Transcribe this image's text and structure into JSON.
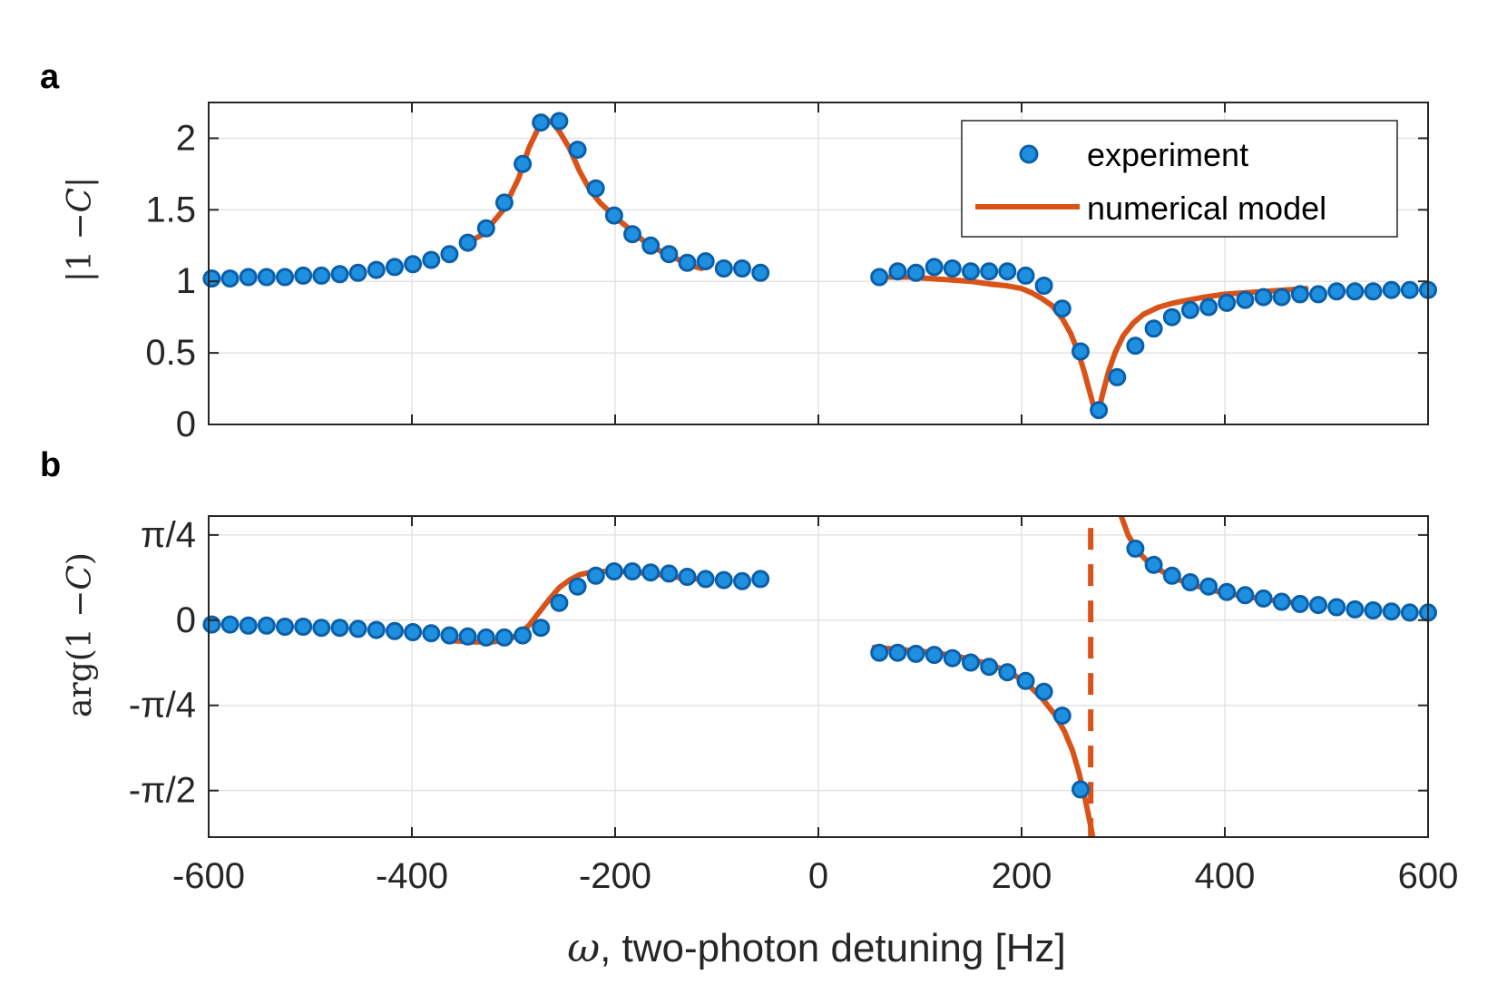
{
  "figure": {
    "xlabel": {
      "symbol": "ω",
      "text": ", two-photon detuning [Hz]"
    }
  },
  "legend": {
    "experiment": "experiment",
    "model": "numerical model"
  },
  "colors": {
    "marker_fill": "#1f8fe0",
    "marker_edge": "#0b5fa8",
    "model": "#d95319",
    "grid": "#e3e3e3",
    "axis": "#262626"
  },
  "chart_data": [
    {
      "panel": "a",
      "type": "scatter",
      "ylabel": "|1 − C|",
      "ylabel_parts": {
        "left": "|1 −",
        "symbol": "C",
        "right": "|"
      },
      "xlim": [
        -600,
        600
      ],
      "ylim": [
        0,
        2.25
      ],
      "xticks": [
        -600,
        -400,
        -200,
        0,
        200,
        400,
        600
      ],
      "yticks": [
        0,
        0.5,
        1,
        1.5,
        2
      ],
      "ytick_labels": [
        "0",
        "0.5",
        "1",
        "1.5",
        "2"
      ],
      "grid": true,
      "legend_position": "top-right",
      "series": [
        {
          "name": "experiment",
          "style": "markers",
          "x": [
            -597,
            -579,
            -561,
            -543,
            -525,
            -507,
            -489,
            -471,
            -453,
            -435,
            -417,
            -399,
            -381,
            -363,
            -345,
            -327,
            -309,
            -291,
            -273,
            -255,
            -237,
            -219,
            -201,
            -183,
            -165,
            -147,
            -129,
            -111,
            -93,
            -75,
            -57,
            60,
            78,
            96,
            114,
            132,
            150,
            168,
            186,
            204,
            222,
            240,
            258,
            276,
            294,
            312,
            330,
            348,
            366,
            384,
            402,
            420,
            438,
            456,
            474,
            492,
            510,
            528,
            546,
            564,
            582,
            600
          ],
          "y": [
            1.02,
            1.02,
            1.03,
            1.03,
            1.03,
            1.04,
            1.04,
            1.05,
            1.06,
            1.08,
            1.1,
            1.12,
            1.15,
            1.19,
            1.27,
            1.37,
            1.55,
            1.82,
            2.11,
            2.12,
            1.92,
            1.65,
            1.46,
            1.33,
            1.25,
            1.19,
            1.13,
            1.14,
            1.09,
            1.09,
            1.06,
            1.03,
            1.07,
            1.06,
            1.1,
            1.09,
            1.07,
            1.07,
            1.07,
            1.04,
            0.97,
            0.81,
            0.51,
            0.1,
            0.33,
            0.55,
            0.67,
            0.75,
            0.8,
            0.82,
            0.85,
            0.87,
            0.89,
            0.89,
            0.91,
            0.91,
            0.93,
            0.93,
            0.93,
            0.94,
            0.94,
            0.94
          ]
        },
        {
          "name": "numerical model",
          "style": "line",
          "segments": [
            {
              "x": [
                -350,
                -330,
                -310,
                -295,
                -285,
                -275,
                -268,
                -262,
                -255,
                -245,
                -235,
                -225,
                -215,
                -200,
                -185,
                -170,
                -155,
                -140,
                -125,
                -115
              ],
              "y": [
                1.25,
                1.33,
                1.5,
                1.72,
                1.93,
                2.08,
                2.13,
                2.11,
                2.05,
                1.93,
                1.77,
                1.64,
                1.55,
                1.45,
                1.36,
                1.27,
                1.21,
                1.16,
                1.11,
                1.09
              ]
            },
            {
              "x": [
                70,
                90,
                110,
                130,
                150,
                170,
                185,
                200,
                210,
                220,
                230,
                240,
                248,
                256,
                262,
                268,
                272,
                276,
                280,
                286,
                292,
                300,
                310,
                320,
                335,
                350,
                365,
                380,
                400,
                420,
                440,
                460,
                480
              ],
              "y": [
                1.03,
                1.03,
                1.02,
                1.01,
                1.0,
                0.98,
                0.97,
                0.95,
                0.92,
                0.88,
                0.83,
                0.74,
                0.64,
                0.5,
                0.36,
                0.2,
                0.1,
                0.1,
                0.22,
                0.38,
                0.5,
                0.62,
                0.71,
                0.77,
                0.82,
                0.85,
                0.87,
                0.89,
                0.91,
                0.92,
                0.93,
                0.94,
                0.95
              ]
            }
          ]
        }
      ]
    },
    {
      "panel": "b",
      "type": "scatter",
      "ylabel": "arg(1 − C)",
      "ylabel_parts": {
        "left": "arg(1 −",
        "symbol": "C",
        "right": ")"
      },
      "xlim": [
        -600,
        600
      ],
      "ylim": [
        -2.0,
        0.96
      ],
      "xticks": [
        -600,
        -400,
        -200,
        0,
        200,
        400,
        600
      ],
      "xtick_labels": [
        "-600",
        "-400",
        "-200",
        "0",
        "200",
        "400",
        "600"
      ],
      "yticks": [
        -1.5708,
        -0.7854,
        0,
        0.7854
      ],
      "ytick_labels": [
        "-π/2",
        "-π/4",
        "0",
        "π/4"
      ],
      "grid": true,
      "series": [
        {
          "name": "experiment",
          "style": "markers",
          "x": [
            -597,
            -579,
            -561,
            -543,
            -525,
            -507,
            -489,
            -471,
            -453,
            -435,
            -417,
            -399,
            -381,
            -363,
            -345,
            -327,
            -309,
            -291,
            -273,
            -255,
            -237,
            -219,
            -201,
            -183,
            -165,
            -147,
            -129,
            -111,
            -93,
            -75,
            -57,
            60,
            78,
            96,
            114,
            132,
            150,
            168,
            186,
            204,
            222,
            240,
            258,
            312,
            330,
            348,
            366,
            384,
            402,
            420,
            438,
            456,
            474,
            492,
            510,
            528,
            546,
            564,
            582,
            600
          ],
          "y": [
            -0.04,
            -0.04,
            -0.05,
            -0.05,
            -0.06,
            -0.06,
            -0.07,
            -0.07,
            -0.08,
            -0.09,
            -0.1,
            -0.11,
            -0.12,
            -0.14,
            -0.15,
            -0.16,
            -0.16,
            -0.14,
            -0.07,
            0.16,
            0.31,
            0.41,
            0.45,
            0.45,
            0.44,
            0.43,
            0.4,
            0.38,
            0.37,
            0.36,
            0.38,
            -0.3,
            -0.3,
            -0.31,
            -0.32,
            -0.35,
            -0.39,
            -0.43,
            -0.48,
            -0.56,
            -0.66,
            -0.88,
            -1.56,
            0.66,
            0.51,
            0.41,
            0.35,
            0.31,
            0.26,
            0.23,
            0.2,
            0.17,
            0.15,
            0.14,
            0.12,
            0.1,
            0.09,
            0.08,
            0.07,
            0.07
          ]
        },
        {
          "name": "numerical model",
          "style": "line",
          "segments": [
            {
              "x": [
                -360,
                -340,
                -320,
                -305,
                -295,
                -285,
                -275,
                -265,
                -255,
                -245,
                -235,
                -225,
                -210,
                -195,
                -180,
                -165,
                -150,
                -135,
                -120
              ],
              "y": [
                -0.19,
                -0.2,
                -0.2,
                -0.18,
                -0.13,
                -0.05,
                0.07,
                0.19,
                0.3,
                0.37,
                0.42,
                0.44,
                0.45,
                0.45,
                0.44,
                0.43,
                0.41,
                0.39,
                0.38
              ]
            },
            {
              "x": [
                55,
                80,
                105,
                130,
                150,
                170,
                190,
                205,
                220,
                232,
                242,
                250,
                256,
                261,
                265,
                268,
                270
              ],
              "y": [
                -0.25,
                -0.27,
                -0.29,
                -0.32,
                -0.36,
                -0.41,
                -0.49,
                -0.58,
                -0.72,
                -0.86,
                -1.02,
                -1.2,
                -1.39,
                -1.58,
                -1.76,
                -1.9,
                -2.0
              ]
            },
            {
              "x": [
                298,
                305,
                315,
                325,
                340,
                355,
                370,
                385,
                400,
                420,
                440,
                460,
                480
              ],
              "y": [
                0.96,
                0.78,
                0.63,
                0.53,
                0.44,
                0.37,
                0.32,
                0.28,
                0.25,
                0.22,
                0.19,
                0.17,
                0.15
              ]
            }
          ]
        },
        {
          "name": "phase jump",
          "style": "dashed",
          "x": [
            268,
            268
          ],
          "y": [
            0.85,
            -2.0
          ]
        }
      ]
    }
  ]
}
